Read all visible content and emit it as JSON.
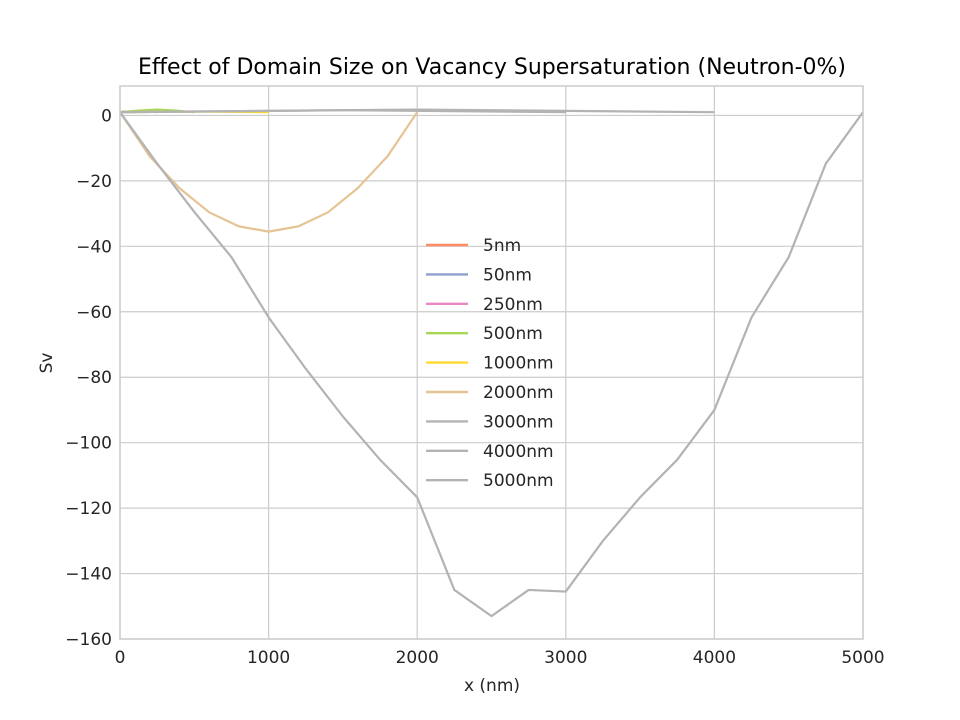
{
  "chart_data": {
    "type": "line",
    "title": "Effect of Domain Size on Vacancy Supersaturation (Neutron-0%)",
    "xlabel": "x (nm)",
    "ylabel": "Sv",
    "xlim": [
      0,
      5000
    ],
    "ylim": [
      -160,
      9
    ],
    "xticks": [
      0,
      1000,
      2000,
      3000,
      4000,
      5000
    ],
    "yticks": [
      0,
      -20,
      -40,
      -60,
      -80,
      -100,
      -120,
      -140,
      -160
    ],
    "grid": true,
    "legend_position": "center",
    "series": [
      {
        "name": "5nm",
        "color": "#fc8d62",
        "domain": 5,
        "points": [
          [
            0,
            1.0
          ],
          [
            2.5,
            1.1
          ],
          [
            5,
            1.0
          ]
        ]
      },
      {
        "name": "50nm",
        "color": "#8da0cb",
        "domain": 50,
        "points": [
          [
            0,
            1.0
          ],
          [
            25,
            1.2
          ],
          [
            50,
            1.0
          ]
        ]
      },
      {
        "name": "250nm",
        "color": "#e78ac3",
        "domain": 250,
        "points": [
          [
            0,
            1.0
          ],
          [
            125,
            1.4
          ],
          [
            250,
            1.0
          ]
        ]
      },
      {
        "name": "500nm",
        "color": "#a6d854",
        "domain": 500,
        "points": [
          [
            0,
            1.0
          ],
          [
            125,
            1.5
          ],
          [
            250,
            1.8
          ],
          [
            375,
            1.5
          ],
          [
            500,
            1.0
          ]
        ]
      },
      {
        "name": "1000nm",
        "color": "#ffd92f",
        "domain": 1000,
        "points": [
          [
            0,
            1.0
          ],
          [
            500,
            1.2
          ],
          [
            1000,
            1.0
          ]
        ]
      },
      {
        "name": "2000nm",
        "color": "#e5c494",
        "domain": 2000,
        "points": [
          [
            0,
            1.0
          ],
          [
            200,
            -12.5
          ],
          [
            400,
            -22.2
          ],
          [
            600,
            -29.6
          ],
          [
            800,
            -33.9
          ],
          [
            1000,
            -35.5
          ],
          [
            1200,
            -33.9
          ],
          [
            1400,
            -29.6
          ],
          [
            1600,
            -22.2
          ],
          [
            1800,
            -12.5
          ],
          [
            2000,
            1.0
          ]
        ]
      },
      {
        "name": "3000nm",
        "color": "#b3b3b3",
        "domain": 3000,
        "points": [
          [
            0,
            1.0
          ],
          [
            1500,
            1.6
          ],
          [
            3000,
            1.0
          ]
        ]
      },
      {
        "name": "4000nm",
        "color": "#b3b3b3",
        "domain": 4000,
        "points": [
          [
            0,
            1.0
          ],
          [
            2000,
            1.8
          ],
          [
            4000,
            1.0
          ]
        ]
      },
      {
        "name": "5000nm",
        "color": "#b3b3b3",
        "domain": 5000,
        "points": [
          [
            0,
            1.0
          ],
          [
            250,
            -14.7
          ],
          [
            500,
            -29.5
          ],
          [
            750,
            -43.3
          ],
          [
            1000,
            -61.7
          ],
          [
            1250,
            -77.4
          ],
          [
            1500,
            -92.0
          ],
          [
            1750,
            -105.2
          ],
          [
            2000,
            -116.7
          ],
          [
            2250,
            -145.0
          ],
          [
            2500,
            -153.0
          ],
          [
            2750,
            -145.0
          ],
          [
            3000,
            -145.5
          ],
          [
            3250,
            -130.0
          ],
          [
            3500,
            -116.7
          ],
          [
            3750,
            -105.2
          ],
          [
            4000,
            -90.0
          ],
          [
            4250,
            -61.7
          ],
          [
            4500,
            -43.3
          ],
          [
            4750,
            -14.7
          ],
          [
            5000,
            1.0
          ]
        ]
      }
    ]
  }
}
